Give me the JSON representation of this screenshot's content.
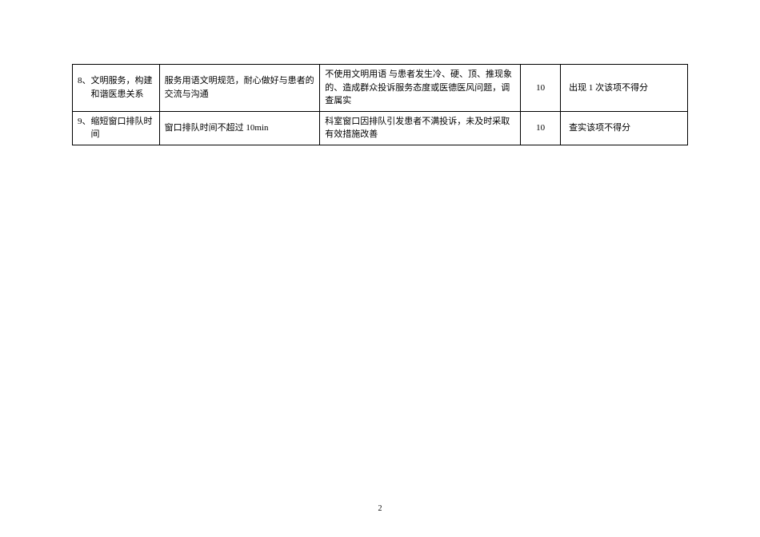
{
  "table": {
    "rows": [
      {
        "item": "8、文明服务，构建和谐医患关系",
        "standard": "服务用语文明规范，耐心做好与患者的交流与沟通",
        "criteria": "不使用文明用语 与患者发生冷、硬、顶、推现象的、造成群众投诉服务态度或医德医风问题，调查属实",
        "score": "10",
        "deduction": "出现 1 次该项不得分"
      },
      {
        "item": "9、缩短窗口排队时间",
        "standard": "窗口排队时间不超过 10min",
        "criteria": "科室窗口因排队引发患者不满投诉，未及时采取有效措施改善",
        "score": "10",
        "deduction": "查实该项不得分"
      }
    ]
  },
  "page_number": "2",
  "styling": {
    "border_color": "#000000",
    "font_size": 11,
    "background_color": "#ffffff",
    "text_color": "#000000"
  }
}
